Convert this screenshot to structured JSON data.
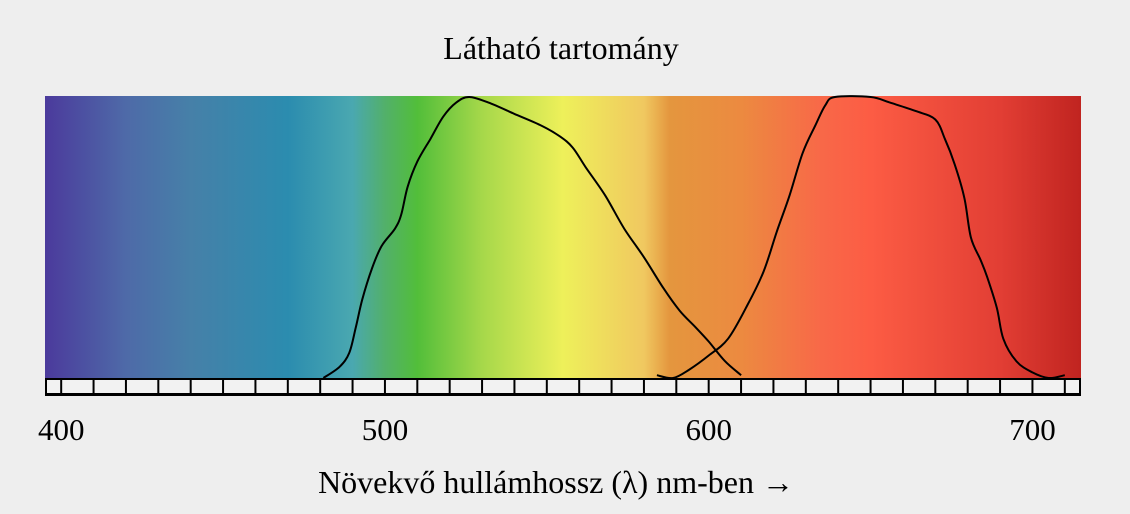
{
  "diagram": {
    "title": "Látható tartomány",
    "axis_title": "Növekvő hullámhossz (λ) nm-ben",
    "axis_arrow": "→",
    "axis": {
      "min_nm": 395,
      "max_nm": 715,
      "minor_step_nm": 10,
      "labels": [
        {
          "nm": 400,
          "text": "400"
        },
        {
          "nm": 500,
          "text": "500"
        },
        {
          "nm": 600,
          "text": "600"
        },
        {
          "nm": 700,
          "text": "700"
        }
      ]
    },
    "spectrum_colors": [
      {
        "nm": 395,
        "color": "#4b3a9c"
      },
      {
        "nm": 420,
        "color": "#4e6aa8"
      },
      {
        "nm": 440,
        "color": "#4680a8"
      },
      {
        "nm": 470,
        "color": "#2b8caf"
      },
      {
        "nm": 490,
        "color": "#4aa8b0"
      },
      {
        "nm": 500,
        "color": "#52b06a"
      },
      {
        "nm": 510,
        "color": "#52be3a"
      },
      {
        "nm": 530,
        "color": "#a6d84a"
      },
      {
        "nm": 555,
        "color": "#eef05a"
      },
      {
        "nm": 580,
        "color": "#f0c860"
      },
      {
        "nm": 588,
        "color": "#e4963e"
      },
      {
        "nm": 610,
        "color": "#ec8a40"
      },
      {
        "nm": 635,
        "color": "#f86848"
      },
      {
        "nm": 650,
        "color": "#fc5c44"
      },
      {
        "nm": 690,
        "color": "#e23e34"
      },
      {
        "nm": 715,
        "color": "#c02420"
      }
    ],
    "green_curve": [
      [
        481,
        0.0
      ],
      [
        486,
        0.04
      ],
      [
        489,
        0.09
      ],
      [
        491,
        0.18
      ],
      [
        493,
        0.28
      ],
      [
        496,
        0.39
      ],
      [
        499,
        0.47
      ],
      [
        503,
        0.53
      ],
      [
        505,
        0.58
      ],
      [
        507,
        0.68
      ],
      [
        510,
        0.77
      ],
      [
        514,
        0.85
      ],
      [
        518,
        0.93
      ],
      [
        522,
        0.98
      ],
      [
        526,
        1.0
      ],
      [
        532,
        0.98
      ],
      [
        540,
        0.94
      ],
      [
        548,
        0.9
      ],
      [
        554,
        0.86
      ],
      [
        558,
        0.82
      ],
      [
        562,
        0.75
      ],
      [
        568,
        0.65
      ],
      [
        574,
        0.53
      ],
      [
        580,
        0.43
      ],
      [
        586,
        0.32
      ],
      [
        591,
        0.24
      ],
      [
        596,
        0.18
      ],
      [
        600,
        0.13
      ],
      [
        605,
        0.06
      ],
      [
        610,
        0.01
      ]
    ],
    "red_curve": [
      [
        584,
        0.01
      ],
      [
        589,
        0.0
      ],
      [
        594,
        0.03
      ],
      [
        600,
        0.08
      ],
      [
        606,
        0.14
      ],
      [
        612,
        0.26
      ],
      [
        617,
        0.38
      ],
      [
        621,
        0.52
      ],
      [
        625,
        0.65
      ],
      [
        629,
        0.8
      ],
      [
        633,
        0.9
      ],
      [
        636,
        0.97
      ],
      [
        639,
        1.0
      ],
      [
        650,
        1.0
      ],
      [
        656,
        0.98
      ],
      [
        664,
        0.95
      ],
      [
        670,
        0.92
      ],
      [
        673,
        0.85
      ],
      [
        676,
        0.76
      ],
      [
        679,
        0.64
      ],
      [
        681,
        0.5
      ],
      [
        684,
        0.42
      ],
      [
        686,
        0.36
      ],
      [
        689,
        0.25
      ],
      [
        691,
        0.14
      ],
      [
        695,
        0.06
      ],
      [
        700,
        0.02
      ],
      [
        705,
        0.0
      ],
      [
        710,
        0.01
      ]
    ]
  }
}
